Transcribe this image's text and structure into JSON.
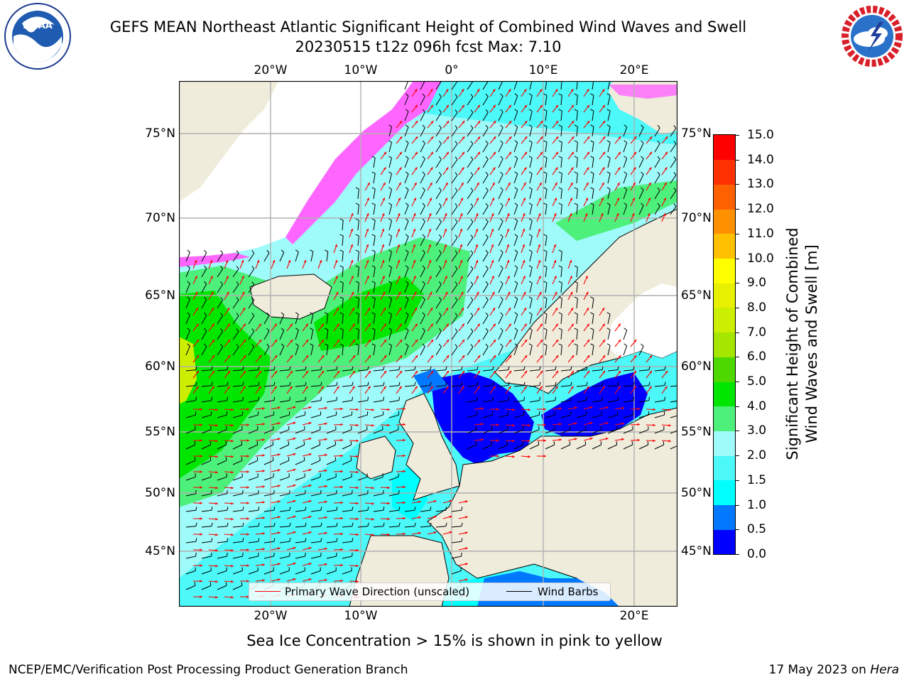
{
  "header": {
    "title_line1": "GEFS MEAN Northeast Atlantic Significant Height of Combined Wind Waves and Swell",
    "title_line2": "20230515 t12z 096h fcst   Max: 7.10"
  },
  "logos": {
    "noaa": {
      "icon": "noaa-seal-icon",
      "text": "NOAA",
      "ring_text": "NATIONAL OCEANIC AND ATMOSPHERIC ADMINISTRATION · U.S. DEPARTMENT OF COMMERCE"
    },
    "nws": {
      "icon": "nws-seal-icon",
      "ring_text": "NATIONAL WEATHER SERVICE"
    }
  },
  "map": {
    "lon_labels_top": [
      "20°W",
      "10°W",
      "0°",
      "10°E",
      "20°E"
    ],
    "lon_labels_bottom": [
      "20°W",
      "10°W",
      "20°E"
    ],
    "lat_labels_left": [
      "75°N",
      "70°N",
      "65°N",
      "60°N",
      "55°N",
      "50°N",
      "45°N"
    ],
    "lat_labels_right": [
      "75°N",
      "70°N",
      "65°N",
      "60°N",
      "55°N",
      "50°N",
      "45°N"
    ],
    "colors": {
      "land": "#efecdc",
      "ice_free_land": "#ffffff",
      "grid": "#b0b0b0",
      "wave_arrow": "#ff0000",
      "wind_barb": "#000000"
    },
    "legend": [
      {
        "label": "Primary Wave Direction (unscaled)",
        "color": "#ff0000"
      },
      {
        "label": "Wind Barbs",
        "color": "#000000"
      }
    ]
  },
  "colorbar": {
    "title_line1": "Significant Height of Combined",
    "title_line2": "Wind Waves and Swell [m]",
    "ticks": [
      "0.0",
      "0.5",
      "1.0",
      "1.5",
      "2.0",
      "3.0",
      "4.0",
      "5.0",
      "6.0",
      "7.0",
      "8.0",
      "9.0",
      "10.0",
      "11.0",
      "12.0",
      "13.0",
      "14.0",
      "15.0"
    ],
    "colors": [
      "#0000ff",
      "#0078ff",
      "#00ffff",
      "#4cf8f8",
      "#9ffafa",
      "#4cf07a",
      "#00e600",
      "#4dd800",
      "#a4e600",
      "#ccee00",
      "#e6f000",
      "#ffff00",
      "#ffc000",
      "#ff9000",
      "#ff6000",
      "#ff3000",
      "#ff0000"
    ]
  },
  "footer": {
    "ice_note": "Sea Ice Concentration > 15% is shown in pink to yellow",
    "credit": "NCEP/EMC/Verification Post Processing Product Generation Branch",
    "date_prefix": "17 May 2023 on ",
    "date_host": "Hera"
  }
}
